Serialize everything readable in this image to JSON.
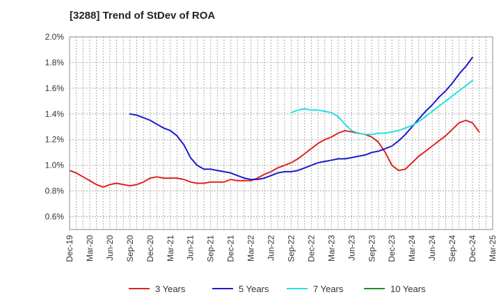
{
  "chart_data": {
    "type": "line",
    "title": "[3288]  Trend of StDev of ROA",
    "x": [
      "Dec-19",
      "Mar-20",
      "Jun-20",
      "Sep-20",
      "Dec-20",
      "Mar-21",
      "Jun-21",
      "Sep-21",
      "Dec-21",
      "Mar-22",
      "Jun-22",
      "Sep-22",
      "Dec-22",
      "Mar-23",
      "Jun-23",
      "Sep-23",
      "Dec-23",
      "Mar-24",
      "Jun-24",
      "Sep-24",
      "Dec-24",
      "Mar-25"
    ],
    "y_ticks": [
      "0.6%",
      "0.8%",
      "1.0%",
      "1.2%",
      "1.4%",
      "1.6%",
      "1.8%",
      "2.0%"
    ],
    "ylim": [
      0.5,
      2.0
    ],
    "grid": true,
    "legend_position": "bottom",
    "series": [
      {
        "name": "3 Years",
        "color": "#e02020",
        "points": [
          [
            0,
            0.96
          ],
          [
            0.33,
            0.94
          ],
          [
            0.67,
            0.91
          ],
          [
            1,
            0.88
          ],
          [
            1.33,
            0.85
          ],
          [
            1.67,
            0.83
          ],
          [
            2,
            0.85
          ],
          [
            2.33,
            0.86
          ],
          [
            2.67,
            0.85
          ],
          [
            3,
            0.84
          ],
          [
            3.33,
            0.85
          ],
          [
            3.67,
            0.87
          ],
          [
            4,
            0.9
          ],
          [
            4.33,
            0.91
          ],
          [
            4.67,
            0.9
          ],
          [
            5,
            0.9
          ],
          [
            5.33,
            0.9
          ],
          [
            5.67,
            0.89
          ],
          [
            6,
            0.87
          ],
          [
            6.33,
            0.86
          ],
          [
            6.67,
            0.86
          ],
          [
            7,
            0.87
          ],
          [
            7.33,
            0.87
          ],
          [
            7.67,
            0.87
          ],
          [
            8,
            0.89
          ],
          [
            8.33,
            0.88
          ],
          [
            8.67,
            0.88
          ],
          [
            9,
            0.88
          ],
          [
            9.33,
            0.9
          ],
          [
            9.67,
            0.93
          ],
          [
            10,
            0.95
          ],
          [
            10.33,
            0.98
          ],
          [
            10.67,
            1.0
          ],
          [
            11,
            1.02
          ],
          [
            11.33,
            1.05
          ],
          [
            11.67,
            1.09
          ],
          [
            12,
            1.13
          ],
          [
            12.33,
            1.17
          ],
          [
            12.67,
            1.2
          ],
          [
            13,
            1.22
          ],
          [
            13.33,
            1.25
          ],
          [
            13.67,
            1.27
          ],
          [
            14,
            1.26
          ],
          [
            14.33,
            1.25
          ],
          [
            14.67,
            1.24
          ],
          [
            15,
            1.22
          ],
          [
            15.33,
            1.18
          ],
          [
            15.67,
            1.1
          ],
          [
            16,
            1.0
          ],
          [
            16.33,
            0.96
          ],
          [
            16.67,
            0.97
          ],
          [
            17,
            1.02
          ],
          [
            17.33,
            1.07
          ],
          [
            17.67,
            1.11
          ],
          [
            18,
            1.15
          ],
          [
            18.33,
            1.19
          ],
          [
            18.67,
            1.23
          ],
          [
            19,
            1.28
          ],
          [
            19.33,
            1.33
          ],
          [
            19.67,
            1.35
          ],
          [
            20,
            1.33
          ],
          [
            20.33,
            1.26
          ]
        ]
      },
      {
        "name": "5 Years",
        "color": "#1a1acc",
        "points": [
          [
            3,
            1.4
          ],
          [
            3.33,
            1.39
          ],
          [
            3.67,
            1.37
          ],
          [
            4,
            1.35
          ],
          [
            4.33,
            1.32
          ],
          [
            4.67,
            1.29
          ],
          [
            5,
            1.27
          ],
          [
            5.33,
            1.23
          ],
          [
            5.67,
            1.16
          ],
          [
            6,
            1.06
          ],
          [
            6.33,
            1.0
          ],
          [
            6.67,
            0.97
          ],
          [
            7,
            0.97
          ],
          [
            7.33,
            0.96
          ],
          [
            7.67,
            0.95
          ],
          [
            8,
            0.94
          ],
          [
            8.33,
            0.92
          ],
          [
            8.67,
            0.9
          ],
          [
            9,
            0.89
          ],
          [
            9.33,
            0.89
          ],
          [
            9.67,
            0.9
          ],
          [
            10,
            0.92
          ],
          [
            10.33,
            0.94
          ],
          [
            10.67,
            0.95
          ],
          [
            11,
            0.95
          ],
          [
            11.33,
            0.96
          ],
          [
            11.67,
            0.98
          ],
          [
            12,
            1.0
          ],
          [
            12.33,
            1.02
          ],
          [
            12.67,
            1.03
          ],
          [
            13,
            1.04
          ],
          [
            13.33,
            1.05
          ],
          [
            13.67,
            1.05
          ],
          [
            14,
            1.06
          ],
          [
            14.33,
            1.07
          ],
          [
            14.67,
            1.08
          ],
          [
            15,
            1.1
          ],
          [
            15.33,
            1.11
          ],
          [
            15.67,
            1.13
          ],
          [
            16,
            1.15
          ],
          [
            16.33,
            1.19
          ],
          [
            16.67,
            1.24
          ],
          [
            17,
            1.3
          ],
          [
            17.33,
            1.36
          ],
          [
            17.67,
            1.42
          ],
          [
            18,
            1.47
          ],
          [
            18.33,
            1.53
          ],
          [
            18.67,
            1.58
          ],
          [
            19,
            1.64
          ],
          [
            19.33,
            1.71
          ],
          [
            19.67,
            1.77
          ],
          [
            20,
            1.84
          ]
        ]
      },
      {
        "name": "7 Years",
        "color": "#22e0e0",
        "points": [
          [
            11,
            1.41
          ],
          [
            11.33,
            1.43
          ],
          [
            11.67,
            1.44
          ],
          [
            12,
            1.43
          ],
          [
            12.33,
            1.43
          ],
          [
            12.67,
            1.42
          ],
          [
            13,
            1.41
          ],
          [
            13.33,
            1.38
          ],
          [
            13.67,
            1.32
          ],
          [
            14,
            1.27
          ],
          [
            14.33,
            1.25
          ],
          [
            14.67,
            1.24
          ],
          [
            15,
            1.24
          ],
          [
            15.33,
            1.25
          ],
          [
            15.67,
            1.25
          ],
          [
            16,
            1.26
          ],
          [
            16.33,
            1.27
          ],
          [
            16.67,
            1.29
          ],
          [
            17,
            1.31
          ],
          [
            17.33,
            1.34
          ],
          [
            17.67,
            1.38
          ],
          [
            18,
            1.42
          ],
          [
            18.33,
            1.46
          ],
          [
            18.67,
            1.5
          ],
          [
            19,
            1.54
          ],
          [
            19.33,
            1.58
          ],
          [
            19.67,
            1.62
          ],
          [
            20,
            1.66
          ]
        ]
      },
      {
        "name": "10 Years",
        "color": "#228b22",
        "points": []
      }
    ]
  }
}
